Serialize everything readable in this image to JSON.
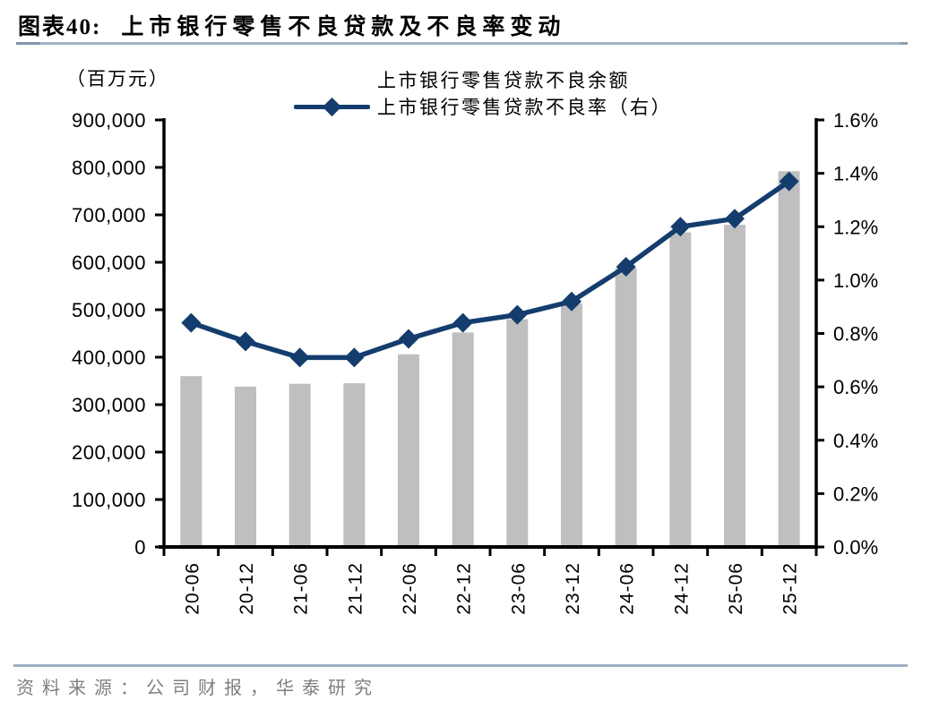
{
  "header": {
    "figure_label": "图表40:",
    "title": "上市银行零售不良贷款及不良率变动"
  },
  "axis_unit_label": "（百万元）",
  "legend": [
    {
      "label": "上市银行零售贷款不良余额",
      "marker": "gray-bar-swatch"
    },
    {
      "label": "上市银行零售贷款不良率（右）",
      "marker": "navy-line-diamond"
    }
  ],
  "source_note": "资料来源：公司财报，华泰研究",
  "colors": {
    "bar": "#bfbfbf",
    "line": "#143d6e",
    "axis": "#000000",
    "divider": "#a4b6c8",
    "source_text": "#7f7f7f"
  },
  "chart_data": {
    "type": "bar+line",
    "title": "上市银行零售不良贷款及不良率变动",
    "categories": [
      "20-06",
      "20-12",
      "21-06",
      "21-12",
      "22-06",
      "22-12",
      "23-06",
      "23-12",
      "24-06",
      "24-12",
      "25-06",
      "25-12"
    ],
    "series": [
      {
        "name": "上市银行零售贷款不良余额",
        "type": "bar",
        "axis": "left",
        "unit": "百万元",
        "values": [
          360000,
          338000,
          344000,
          345000,
          406000,
          452000,
          480000,
          513000,
          588000,
          663000,
          679000,
          792000
        ]
      },
      {
        "name": "上市银行零售贷款不良率（右）",
        "type": "line",
        "axis": "right",
        "unit": "%",
        "values": [
          0.84,
          0.77,
          0.71,
          0.71,
          0.78,
          0.84,
          0.87,
          0.92,
          1.05,
          1.2,
          1.23,
          1.37
        ]
      }
    ],
    "left_axis": {
      "label": "（百万元）",
      "min": 0,
      "max": 900000,
      "step": 100000
    },
    "right_axis": {
      "label": "%",
      "min": 0.0,
      "max": 1.6,
      "step": 0.2
    },
    "grid": false,
    "legend_position": "top-center"
  }
}
